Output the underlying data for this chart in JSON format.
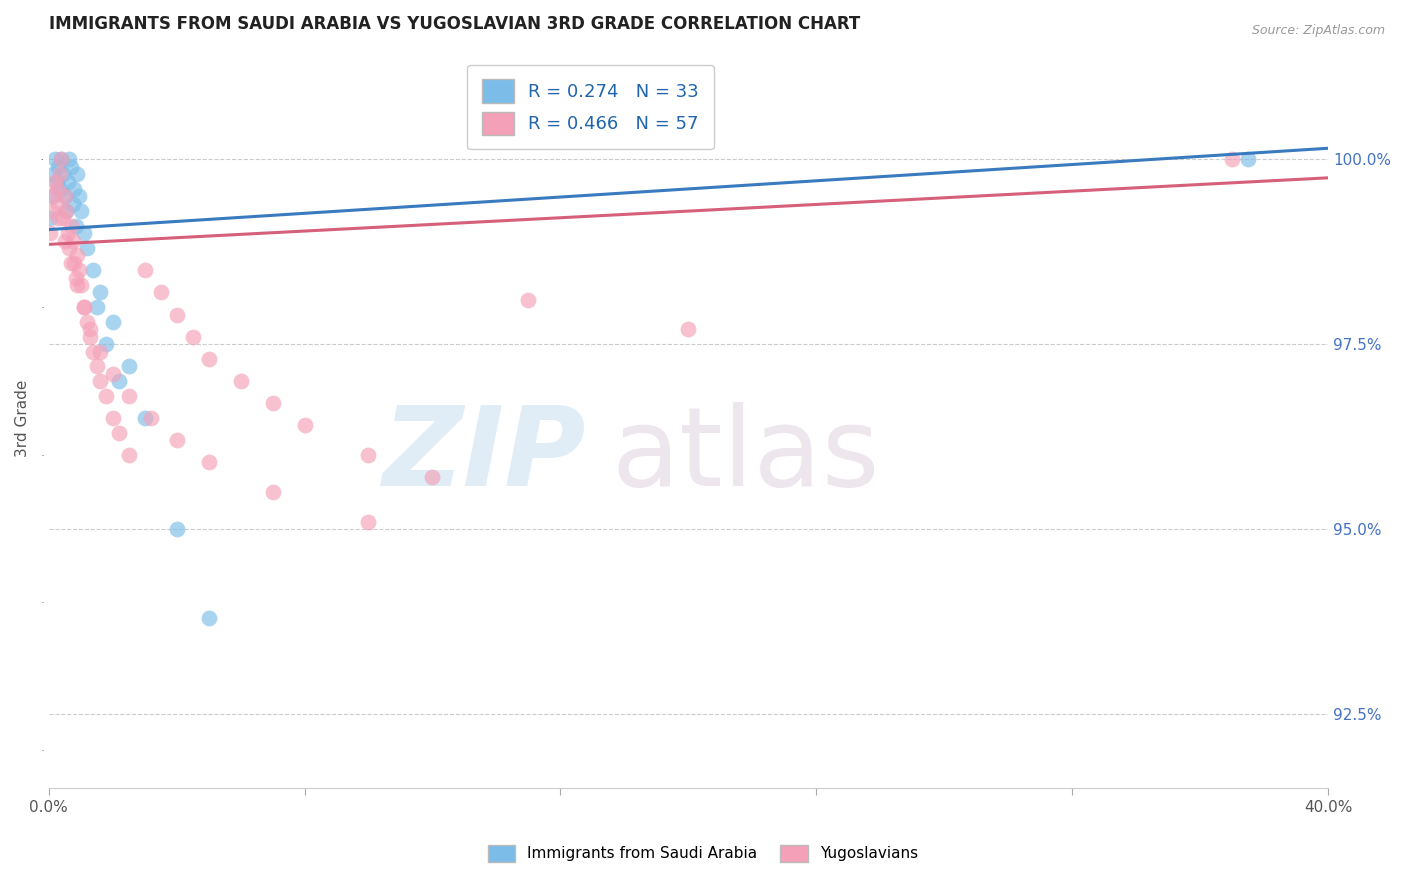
{
  "title": "IMMIGRANTS FROM SAUDI ARABIA VS YUGOSLAVIAN 3RD GRADE CORRELATION CHART",
  "source": "Source: ZipAtlas.com",
  "ylabel": "3rd Grade",
  "legend_label1": "Immigrants from Saudi Arabia",
  "legend_label2": "Yugoslavians",
  "R1": 0.274,
  "N1": 33,
  "R2": 0.466,
  "N2": 57,
  "color1": "#7bbde8",
  "color2": "#f4a0b8",
  "line_color1": "#3a7abf",
  "line_color2": "#d6607a",
  "xlim": [
    0.0,
    40.0
  ],
  "ylim": [
    91.5,
    101.5
  ],
  "y_ticks": [
    92.5,
    95.0,
    97.5,
    100.0
  ],
  "saudi_x": [
    0.05,
    0.1,
    0.15,
    0.2,
    0.25,
    0.3,
    0.35,
    0.4,
    0.45,
    0.5,
    0.55,
    0.6,
    0.65,
    0.7,
    0.75,
    0.8,
    0.85,
    0.9,
    0.95,
    1.0,
    1.1,
    1.2,
    1.4,
    1.6,
    2.0,
    2.5,
    3.0,
    4.0,
    5.0,
    1.5,
    1.8,
    2.2,
    37.5
  ],
  "saudi_y": [
    99.2,
    99.5,
    99.8,
    100.0,
    99.7,
    99.9,
    99.6,
    100.0,
    99.8,
    99.5,
    99.3,
    99.7,
    100.0,
    99.9,
    99.4,
    99.6,
    99.1,
    99.8,
    99.5,
    99.3,
    99.0,
    98.8,
    98.5,
    98.2,
    97.8,
    97.2,
    96.5,
    95.0,
    93.8,
    98.0,
    97.5,
    97.0,
    100.0
  ],
  "yugoslav_x": [
    0.05,
    0.1,
    0.15,
    0.2,
    0.25,
    0.3,
    0.35,
    0.4,
    0.45,
    0.5,
    0.55,
    0.6,
    0.65,
    0.7,
    0.75,
    0.8,
    0.85,
    0.9,
    0.95,
    1.0,
    1.1,
    1.2,
    1.3,
    1.4,
    1.5,
    1.6,
    1.8,
    2.0,
    2.2,
    2.5,
    3.0,
    3.5,
    4.0,
    4.5,
    5.0,
    6.0,
    7.0,
    8.0,
    10.0,
    12.0,
    0.3,
    0.5,
    0.7,
    0.9,
    1.1,
    1.3,
    1.6,
    2.0,
    2.5,
    3.2,
    4.0,
    5.0,
    7.0,
    10.0,
    15.0,
    20.0,
    37.0
  ],
  "yugoslav_y": [
    99.0,
    99.3,
    99.5,
    99.7,
    99.6,
    99.4,
    99.8,
    100.0,
    99.2,
    99.5,
    99.3,
    99.0,
    98.8,
    99.1,
    98.9,
    98.6,
    98.4,
    98.7,
    98.5,
    98.3,
    98.0,
    97.8,
    97.6,
    97.4,
    97.2,
    97.0,
    96.8,
    96.5,
    96.3,
    96.0,
    98.5,
    98.2,
    97.9,
    97.6,
    97.3,
    97.0,
    96.7,
    96.4,
    96.0,
    95.7,
    99.2,
    98.9,
    98.6,
    98.3,
    98.0,
    97.7,
    97.4,
    97.1,
    96.8,
    96.5,
    96.2,
    95.9,
    95.5,
    95.1,
    98.1,
    97.7,
    100.0
  ]
}
